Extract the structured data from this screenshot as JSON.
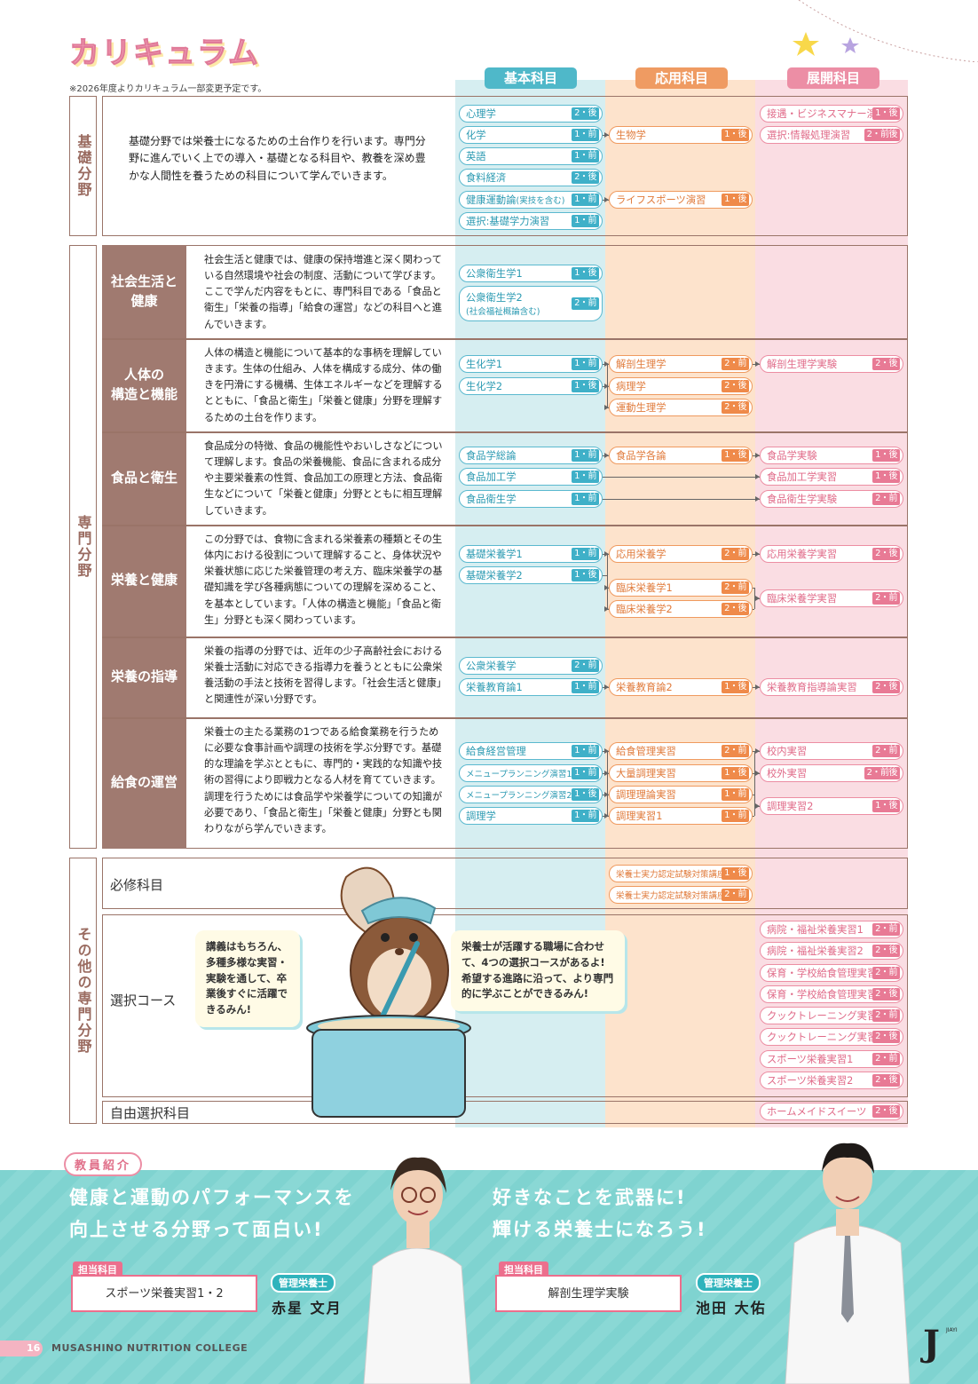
{
  "title": "カリキュラム",
  "note": "※2026年度よりカリキュラム一部変更予定です。",
  "columns": {
    "basic": "基本科目",
    "applied": "応用科目",
    "advanced": "展開科目"
  },
  "colors": {
    "basic_bg": "#d6eef1",
    "applied_bg": "#fde3cc",
    "advanced_bg": "#fadde3",
    "basic": "#4fb8c9",
    "applied": "#ef9b62",
    "advanced": "#ec8ea5",
    "frame": "#9a7468"
  },
  "sections": {
    "kiso": "基礎分野",
    "senmon": "専門分野",
    "sonota": "その他の専門分野"
  },
  "kiso_desc": "基礎分野では栄養士になるための土台作りを行います。専門分野に進んでいく上での導入・基礎となる科目や、教養を深め豊かな人間性を養うための科目について学んでいきます。",
  "rows": [
    {
      "label": "社会生活と\n健康",
      "desc": "社会生活と健康では、健康の保持増進と深く関わっている自然環境や社会の制度、活動について学びます。ここで学んだ内容をもとに、専門科目である「食品と衛生」「栄養の指導」「給食の運営」などの科目へと進んでいきます。"
    },
    {
      "label": "人体の\n構造と機能",
      "desc": "人体の構造と機能について基本的な事柄を理解していきます。生体の仕組み、人体を構成する成分、体の働きを円滑にする機構、生体エネルギーなどを理解するとともに、「食品と衛生」「栄養と健康」分野を理解するための土台を作ります。"
    },
    {
      "label": "食品と衛生",
      "desc": "食品成分の特徴、食品の機能性やおいしさなどについて理解します。食品の栄養機能、食品に含まれる成分や主要栄養素の性質、食品加工の原理と方法、食品衛生などについて「栄養と健康」分野とともに相互理解していきます。"
    },
    {
      "label": "栄養と健康",
      "desc": "この分野では、食物に含まれる栄養素の種類とその生体内における役割について理解すること、身体状況や栄養状態に応じた栄養管理の考え方、臨床栄養学の基礎知識を学び各種病態についての理解を深めること、を基本としています。「人体の構造と機能」「食品と衛生」分野とも深く関わっています。"
    },
    {
      "label": "栄養の指導",
      "desc": "栄養の指導の分野では、近年の少子高齢社会における栄養士活動に対応できる指導力を養うとともに公衆栄養活動の手法と技術を習得します。「社会生活と健康」と関連性が深い分野です。"
    },
    {
      "label": "給食の運営",
      "desc": "栄養士の主たる業務の1つである給食業務を行うために必要な食事計画や調理の技術を学ぶ分野です。基礎的な理論を学ぶとともに、専門的・実践的な知識や技術の習得により即戦力となる人材を育てていきます。調理を行うためには食品学や栄養学についての知識が必要であり、「食品と衛生」「栄養と健康」分野とも関わりながら学んでいきます。"
    }
  ],
  "other_rows": {
    "required": "必修科目",
    "course": "選択コース",
    "free": "自由選択科目"
  },
  "subjects": {
    "b1": [
      "心理学",
      "2・後"
    ],
    "b2": [
      "化学",
      "1・前"
    ],
    "b3": [
      "英語",
      "1・前"
    ],
    "b4": [
      "食料経済",
      "2・後"
    ],
    "b5": [
      "健康運動論",
      "1・前"
    ],
    "b5s": "(実技を含む)",
    "b6": [
      "選択:基礎学力演習",
      "1・前"
    ],
    "a1": [
      "生物学",
      "1・後"
    ],
    "a2": [
      "ライフスポーツ演習",
      "1・後"
    ],
    "d1": [
      "接遇・ビジネスマナー演習",
      "1・後"
    ],
    "d2": [
      "選択:情報処理演習",
      "2・前後"
    ],
    "s1": [
      "公衆衛生学1",
      "1・後"
    ],
    "s2": [
      "公衆衛生学2",
      "2・前"
    ],
    "s2s": "(社会福祉概論含む)",
    "j1": [
      "生化学1",
      "1・前"
    ],
    "j2": [
      "生化学2",
      "1・後"
    ],
    "ja1": [
      "解剖生理学",
      "2・前"
    ],
    "ja2": [
      "病理学",
      "2・後"
    ],
    "ja3": [
      "運動生理学",
      "2・後"
    ],
    "jd1": [
      "解剖生理学実験",
      "2・後"
    ],
    "f1": [
      "食品学総論",
      "1・前"
    ],
    "f2": [
      "食品加工学",
      "1・前"
    ],
    "f3": [
      "食品衛生学",
      "1・前"
    ],
    "fa1": [
      "食品学各論",
      "1・後"
    ],
    "fd1": [
      "食品学実験",
      "1・後"
    ],
    "fd2": [
      "食品加工学実習",
      "1・後"
    ],
    "fd3": [
      "食品衛生学実験",
      "2・前"
    ],
    "e1": [
      "基礎栄養学1",
      "1・前"
    ],
    "e2": [
      "基礎栄養学2",
      "1・後"
    ],
    "ea1": [
      "応用栄養学",
      "2・前"
    ],
    "ea2": [
      "臨床栄養学1",
      "2・前"
    ],
    "ea3": [
      "臨床栄養学2",
      "2・後"
    ],
    "ed1": [
      "応用栄養学実習",
      "2・後"
    ],
    "ed2": [
      "臨床栄養学実習",
      "2・前"
    ],
    "g1": [
      "公衆栄養学",
      "2・前"
    ],
    "g2": [
      "栄養教育論1",
      "1・前"
    ],
    "ga1": [
      "栄養教育論2",
      "1・後"
    ],
    "gd1": [
      "栄養教育指導論実習",
      "2・後"
    ],
    "k1": [
      "給食経営管理",
      "1・前"
    ],
    "k2": [
      "メニュープランニング演習1",
      "1・前"
    ],
    "k3": [
      "メニュープランニング演習2",
      "1・後"
    ],
    "k4": [
      "調理学",
      "1・前"
    ],
    "ka1": [
      "給食管理実習",
      "2・前"
    ],
    "ka2": [
      "大量調理実習",
      "1・後"
    ],
    "ka3": [
      "調理理論実習",
      "1・前"
    ],
    "ka4": [
      "調理実習1",
      "1・前"
    ],
    "kd1": [
      "校内実習",
      "2・前"
    ],
    "kd2": [
      "校外実習",
      "2・前後"
    ],
    "kd3": [
      "調理実習2",
      "1・後"
    ],
    "r1": [
      "栄養士実力認定試験対策講座1",
      "1・後"
    ],
    "r2": [
      "栄養士実力認定試験対策講座2",
      "2・前"
    ],
    "c1": [
      "病院・福祉栄養実習1",
      "2・前"
    ],
    "c2": [
      "病院・福祉栄養実習2",
      "2・後"
    ],
    "c3": [
      "保育・学校給食管理実習1",
      "2・前"
    ],
    "c4": [
      "保育・学校給食管理実習2",
      "2・後"
    ],
    "c5": [
      "クックトレーニング実習1",
      "2・前"
    ],
    "c6": [
      "クックトレーニング実習2",
      "2・後"
    ],
    "c7": [
      "スポーツ栄養実習1",
      "2・前"
    ],
    "c8": [
      "スポーツ栄養実習2",
      "2・後"
    ],
    "fr1": [
      "ホームメイドスイーツ",
      "2・後"
    ]
  },
  "bubbles": {
    "left": "講義はもちろん、多種多様な実習・実験を通して、卒業後すぐに活躍できるみん!",
    "right": "栄養士が活躍する職場に合わせて、4つの選択コースがあるよ!希望する進路に沿って、より専門的に学ぶことができるみん!"
  },
  "teachers": {
    "label": "教員紹介",
    "t1": {
      "msg1": "健康と運動のパフォーマンスを",
      "msg2": "向上させる分野って面白い!",
      "tag": "担当科目",
      "subject": "スポーツ栄養実習1・2",
      "role": "管理栄養士",
      "name": "赤星 文月"
    },
    "t2": {
      "msg1": "好きなことを武器に!",
      "msg2": "輝ける栄養士になろう!",
      "tag": "担当科目",
      "subject": "解剖生理学実験",
      "role": "管理栄養士",
      "name": "池田 大佑"
    }
  },
  "footer": {
    "page": "16",
    "school": "MUSASHINO NUTRITION COLLEGE",
    "logo": "J",
    "logo_sub": "JIAYI"
  }
}
